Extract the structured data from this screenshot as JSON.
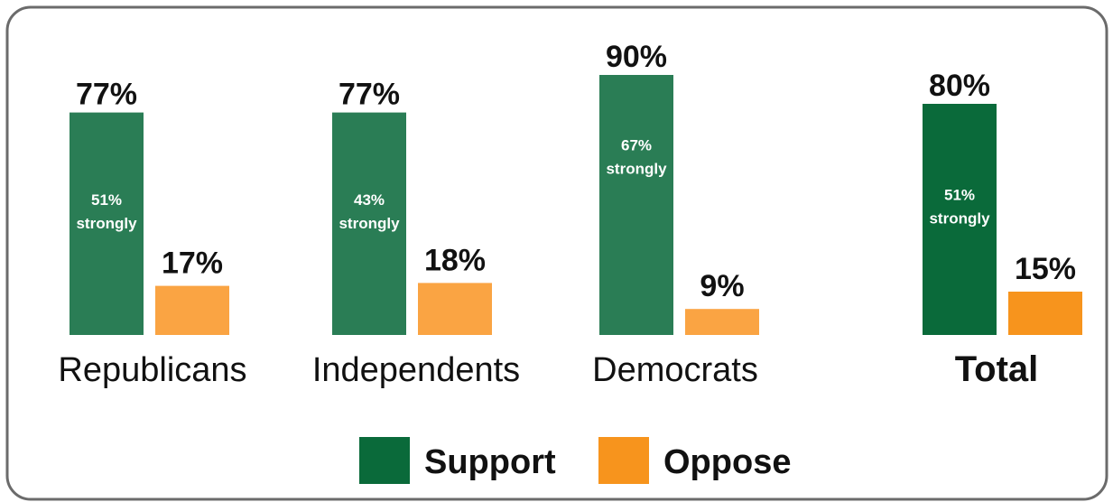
{
  "chart_data": {
    "type": "bar",
    "categories": [
      "Republicans",
      "Independents",
      "Democrats",
      "Total"
    ],
    "bold_categories": [
      "Total"
    ],
    "series": [
      {
        "name": "Support",
        "values": [
          77,
          77,
          90,
          80
        ],
        "value_labels": [
          "77%",
          "77%",
          "90%",
          "80%"
        ],
        "inner_labels": [
          [
            "51%",
            "strongly"
          ],
          [
            "43%",
            "strongly"
          ],
          [
            "67%",
            "strongly"
          ],
          [
            "51%",
            "strongly"
          ]
        ],
        "strongly_values": [
          51,
          43,
          67,
          51
        ],
        "color": "#2a7d55",
        "total_color": "#0a6a3a"
      },
      {
        "name": "Oppose",
        "values": [
          17,
          18,
          9,
          15
        ],
        "value_labels": [
          "17%",
          "18%",
          "9%",
          "15%"
        ],
        "color": "#faa443",
        "total_color": "#f7941d"
      }
    ],
    "ylim": [
      0,
      100
    ],
    "grid": false,
    "legend_position": "bottom-center"
  },
  "legend": {
    "support_label": "Support",
    "oppose_label": "Oppose",
    "support_color": "#0a6a3a",
    "oppose_color": "#f7941d"
  }
}
